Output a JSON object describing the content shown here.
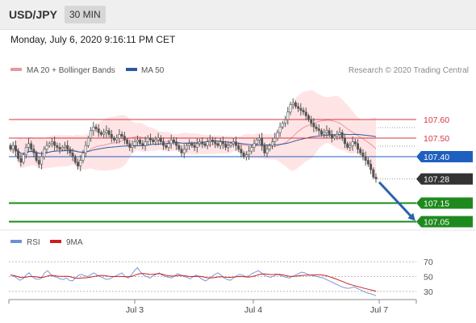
{
  "header": {
    "symbol": "USD/JPY",
    "timeframe": "30 MIN",
    "datetime": "Monday, July 6, 2020 9:16:11 PM CET"
  },
  "legend": {
    "ma20_bb": "MA 20 + Bollinger Bands",
    "ma50": "MA 50",
    "credit": "Research © 2020 Trading Central",
    "rsi": "RSI",
    "rsi_ma": "9MA"
  },
  "colors": {
    "bollinger_band": "#ffd6d8",
    "ma20": "#e59a9e",
    "ma50": "#2c5aa0",
    "resistance": "#d9363e",
    "current_price_line": "#1f5fbf",
    "support": "#1e8a1e",
    "candle": "#555555",
    "rsi": "#6f8fd6",
    "rsi_ma": "#cc1f1f",
    "arrow": "#2a62ad"
  },
  "chart_data": [
    {
      "type": "candlestick",
      "x_tick_labels": [
        "Jul 3",
        "Jul 4",
        "Jul 7"
      ],
      "ylim": [
        107.0,
        107.8
      ],
      "price_levels": [
        {
          "value": 107.6,
          "label": "107.60",
          "kind": "resistance"
        },
        {
          "value": 107.5,
          "label": "107.50",
          "kind": "resistance"
        },
        {
          "value": 107.4,
          "label": "107.40",
          "kind": "pivot"
        },
        {
          "value": 107.28,
          "label": "107.28",
          "kind": "last-price"
        },
        {
          "value": 107.15,
          "label": "107.15",
          "kind": "support"
        },
        {
          "value": 107.05,
          "label": "107.05",
          "kind": "support"
        }
      ],
      "close": [
        107.44,
        107.46,
        107.43,
        107.39,
        107.37,
        107.41,
        107.45,
        107.47,
        107.44,
        107.42,
        107.38,
        107.36,
        107.4,
        107.44,
        107.46,
        107.47,
        107.48,
        107.46,
        107.45,
        107.44,
        107.45,
        107.46,
        107.44,
        107.42,
        107.4,
        107.37,
        107.35,
        107.38,
        107.42,
        107.46,
        107.5,
        107.54,
        107.56,
        107.55,
        107.53,
        107.52,
        107.53,
        107.54,
        107.52,
        107.5,
        107.49,
        107.5,
        107.52,
        107.51,
        107.49,
        107.47,
        107.45,
        107.46,
        107.48,
        107.49,
        107.47,
        107.46,
        107.48,
        107.5,
        107.49,
        107.48,
        107.49,
        107.5,
        107.48,
        107.46,
        107.45,
        107.47,
        107.49,
        107.48,
        107.46,
        107.44,
        107.42,
        107.44,
        107.46,
        107.47,
        107.46,
        107.45,
        107.47,
        107.48,
        107.47,
        107.46,
        107.48,
        107.49,
        107.48,
        107.47,
        107.46,
        107.48,
        107.47,
        107.45,
        107.46,
        107.47,
        107.48,
        107.46,
        107.44,
        107.42,
        107.4,
        107.41,
        107.43,
        107.45,
        107.47,
        107.49,
        107.5,
        107.46,
        107.42,
        107.44,
        107.46,
        107.48,
        107.5,
        107.53,
        107.56,
        107.58,
        107.6,
        107.64,
        107.68,
        107.69,
        107.67,
        107.66,
        107.65,
        107.64,
        107.62,
        107.6,
        107.58,
        107.56,
        107.55,
        107.54,
        107.52,
        107.53,
        107.54,
        107.52,
        107.5,
        107.51,
        107.52,
        107.53,
        107.5,
        107.47,
        107.45,
        107.46,
        107.48,
        107.47,
        107.44,
        107.42,
        107.4,
        107.38,
        107.36,
        107.33,
        107.29,
        107.28
      ],
      "rsi": {
        "ylim": [
          20,
          80
        ],
        "levels": [
          70,
          50,
          30
        ],
        "values": [
          52,
          51,
          48,
          45,
          47,
          52,
          55,
          50,
          47,
          46,
          48,
          55,
          58,
          53,
          50,
          49,
          47,
          46,
          48,
          45,
          44,
          48,
          52,
          53,
          51,
          50,
          53,
          55,
          52,
          50,
          48,
          46,
          47,
          49,
          51,
          53,
          55,
          50,
          48,
          52,
          58,
          62,
          56,
          52,
          50,
          48,
          51,
          53,
          55,
          52,
          50,
          49,
          48,
          51,
          54,
          52,
          50,
          49,
          47,
          50,
          52,
          49,
          46,
          44,
          47,
          50,
          53,
          55,
          52,
          48,
          46,
          45,
          48,
          51,
          53,
          52,
          50,
          51,
          54,
          56,
          58,
          55,
          52,
          50,
          49,
          51,
          53,
          52,
          50,
          49,
          48,
          50,
          52,
          54,
          56,
          55,
          53,
          52,
          51,
          50,
          49,
          48,
          46,
          44,
          42,
          40,
          38,
          36,
          35,
          34,
          35,
          36,
          34,
          32,
          30,
          28,
          27,
          26,
          24
        ]
      }
    }
  ]
}
